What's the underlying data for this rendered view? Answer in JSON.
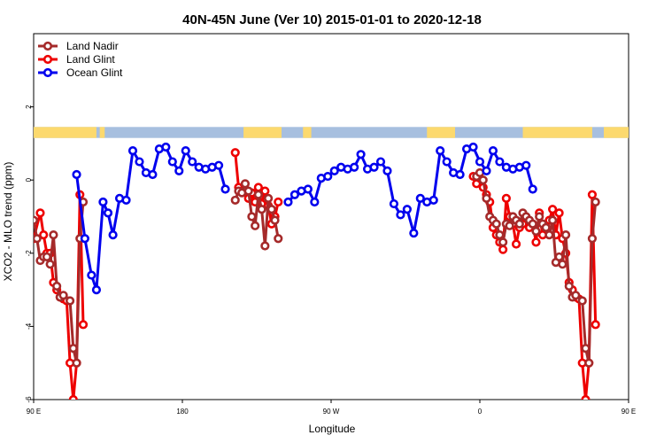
{
  "chart_data": {
    "type": "line",
    "title": "40N-45N June (Ver 10)   2015-01-01 to 2020-12-18",
    "xlabel": "Longitude",
    "ylabel": "XCO2 - MLO trend (ppm)",
    "xlim": [
      90,
      450
    ],
    "ylim": [
      -6,
      4
    ],
    "x_ticks": [
      {
        "value": 90,
        "label": "90 E"
      },
      {
        "value": 180,
        "label": "180"
      },
      {
        "value": 270,
        "label": "90 W"
      },
      {
        "value": 360,
        "label": "0"
      },
      {
        "value": 450,
        "label": "90 E"
      },
      {
        "value": 540,
        "label": "180"
      }
    ],
    "y_ticks": [
      {
        "value": -6,
        "label": "-6"
      },
      {
        "value": -4,
        "label": "-4"
      },
      {
        "value": -2,
        "label": "-2"
      },
      {
        "value": 0,
        "label": "0"
      },
      {
        "value": 2,
        "label": "2"
      }
    ],
    "grid": false,
    "legend_position": "top-left",
    "land_mask_strip": {
      "y_range": [
        1.15,
        1.45
      ],
      "land_color": "#fcd96e",
      "ocean_color": "#a7bfdf",
      "land_ranges": [
        [
          90,
          128
        ],
        [
          130,
          133
        ],
        [
          217,
          240
        ],
        [
          253,
          258
        ],
        [
          328,
          345
        ],
        [
          386,
          428
        ],
        [
          435,
          450
        ]
      ]
    },
    "series": [
      {
        "name": "Land Nadir",
        "color": "#a52a2a",
        "points": [
          [
            90,
            -1.1
          ],
          [
            92,
            -1.6
          ],
          [
            94,
            -2.2
          ],
          [
            96,
            -2.1
          ],
          [
            98,
            -2.1
          ],
          [
            100,
            -2.3
          ],
          [
            102,
            -1.5
          ],
          [
            104,
            -2.9
          ],
          [
            106,
            -3.2
          ],
          [
            108,
            -3.15
          ],
          [
            112,
            -3.3
          ],
          [
            114,
            -4.6
          ],
          [
            116,
            -5.0
          ],
          [
            118,
            -1.6
          ],
          [
            120,
            -0.6
          ],
          [
            212,
            -0.55
          ],
          [
            214,
            -0.3
          ],
          [
            216,
            -0.35
          ],
          [
            218,
            -0.1
          ],
          [
            220,
            -0.3
          ],
          [
            222,
            -1.0
          ],
          [
            224,
            -1.25
          ],
          [
            226,
            -0.4
          ],
          [
            228,
            -0.8
          ],
          [
            230,
            -1.8
          ],
          [
            232,
            -0.5
          ],
          [
            234,
            -0.8
          ],
          [
            236,
            -1.1
          ],
          [
            238,
            -1.6
          ],
          [
            358,
            0.1
          ],
          [
            360,
            0.2
          ],
          [
            362,
            0
          ],
          [
            364,
            -0.5
          ],
          [
            366,
            -1.0
          ],
          [
            368,
            -1.1
          ],
          [
            370,
            -1.2
          ],
          [
            372,
            -1.5
          ],
          [
            374,
            -1.7
          ],
          [
            376,
            -1.2
          ],
          [
            378,
            -1.25
          ],
          [
            380,
            -1.0
          ],
          [
            382,
            -1.1
          ],
          [
            384,
            -1.2
          ],
          [
            386,
            -0.9
          ],
          [
            388,
            -1.0
          ],
          [
            390,
            -1.1
          ],
          [
            392,
            -1.2
          ],
          [
            394,
            -1.4
          ],
          [
            396,
            -1.0
          ],
          [
            398,
            -1.2
          ],
          [
            400,
            -1.3
          ],
          [
            402,
            -1.5
          ],
          [
            404,
            -1.1
          ],
          [
            406,
            -2.25
          ],
          [
            408,
            -2.1
          ],
          [
            410,
            -2.3
          ],
          [
            412,
            -1.5
          ],
          [
            414,
            -2.9
          ],
          [
            416,
            -3.2
          ],
          [
            418,
            -3.15
          ],
          [
            422,
            -3.3
          ],
          [
            424,
            -4.6
          ],
          [
            426,
            -5.0
          ],
          [
            428,
            -1.6
          ],
          [
            430,
            -0.6
          ]
        ]
      },
      {
        "name": "Land Glint",
        "color": "#ee0000",
        "points": [
          [
            90,
            -1.6
          ],
          [
            94,
            -0.9
          ],
          [
            96,
            -1.5
          ],
          [
            98,
            -2.0
          ],
          [
            100,
            -2.0
          ],
          [
            102,
            -2.8
          ],
          [
            104,
            -3.0
          ],
          [
            106,
            -3.2
          ],
          [
            108,
            -3.25
          ],
          [
            110,
            -3.3
          ],
          [
            112,
            -5.0
          ],
          [
            114,
            -6.0
          ],
          [
            116,
            -5.0
          ],
          [
            118,
            -0.4
          ],
          [
            120,
            -3.95
          ],
          [
            212,
            0.75
          ],
          [
            214,
            -0.2
          ],
          [
            216,
            -0.3
          ],
          [
            218,
            -0.25
          ],
          [
            220,
            -0.5
          ],
          [
            222,
            -0.35
          ],
          [
            224,
            -0.6
          ],
          [
            226,
            -0.2
          ],
          [
            228,
            -0.65
          ],
          [
            230,
            -0.3
          ],
          [
            232,
            -0.7
          ],
          [
            234,
            -1.2
          ],
          [
            236,
            -1.0
          ],
          [
            238,
            -0.6
          ],
          [
            356,
            0.1
          ],
          [
            358,
            -0.1
          ],
          [
            360,
            0.05
          ],
          [
            362,
            -0.2
          ],
          [
            364,
            -0.4
          ],
          [
            366,
            -0.6
          ],
          [
            368,
            -1.3
          ],
          [
            370,
            -1.5
          ],
          [
            372,
            -1.7
          ],
          [
            374,
            -1.9
          ],
          [
            376,
            -0.5
          ],
          [
            378,
            -1.0
          ],
          [
            380,
            -1.2
          ],
          [
            382,
            -1.75
          ],
          [
            384,
            -1.3
          ],
          [
            386,
            -1.2
          ],
          [
            388,
            -1.05
          ],
          [
            390,
            -1.3
          ],
          [
            392,
            -1.2
          ],
          [
            394,
            -1.7
          ],
          [
            396,
            -0.9
          ],
          [
            398,
            -1.5
          ],
          [
            400,
            -1.3
          ],
          [
            402,
            -1.1
          ],
          [
            404,
            -0.8
          ],
          [
            406,
            -1.5
          ],
          [
            408,
            -0.9
          ],
          [
            410,
            -1.6
          ],
          [
            412,
            -2.0
          ],
          [
            414,
            -2.8
          ],
          [
            416,
            -3.0
          ],
          [
            418,
            -3.2
          ],
          [
            420,
            -3.25
          ],
          [
            422,
            -5.0
          ],
          [
            424,
            -6.0
          ],
          [
            426,
            -5.0
          ],
          [
            428,
            -0.4
          ],
          [
            430,
            -3.95
          ]
        ]
      },
      {
        "name": "Ocean Glint",
        "color": "#0000ee",
        "points": [
          [
            116,
            0.15
          ],
          [
            121,
            -1.6
          ],
          [
            125,
            -2.6
          ],
          [
            128,
            -3.0
          ],
          [
            132,
            -0.6
          ],
          [
            135,
            -0.9
          ],
          [
            138,
            -1.5
          ],
          [
            142,
            -0.5
          ],
          [
            146,
            -0.55
          ],
          [
            150,
            0.8
          ],
          [
            154,
            0.5
          ],
          [
            158,
            0.2
          ],
          [
            162,
            0.15
          ],
          [
            166,
            0.85
          ],
          [
            170,
            0.9
          ],
          [
            174,
            0.5
          ],
          [
            178,
            0.25
          ],
          [
            182,
            0.8
          ],
          [
            186,
            0.5
          ],
          [
            190,
            0.35
          ],
          [
            194,
            0.3
          ],
          [
            198,
            0.35
          ],
          [
            202,
            0.4
          ],
          [
            206,
            -0.25
          ],
          [
            244,
            -0.6
          ],
          [
            248,
            -0.4
          ],
          [
            252,
            -0.3
          ],
          [
            256,
            -0.25
          ],
          [
            260,
            -0.6
          ],
          [
            264,
            0.05
          ],
          [
            268,
            0.1
          ],
          [
            272,
            0.25
          ],
          [
            276,
            0.35
          ],
          [
            280,
            0.3
          ],
          [
            284,
            0.35
          ],
          [
            288,
            0.7
          ],
          [
            292,
            0.3
          ],
          [
            296,
            0.35
          ],
          [
            300,
            0.5
          ],
          [
            304,
            0.25
          ],
          [
            308,
            -0.65
          ],
          [
            312,
            -0.95
          ],
          [
            316,
            -0.8
          ],
          [
            320,
            -1.45
          ],
          [
            324,
            -0.5
          ],
          [
            328,
            -0.6
          ],
          [
            332,
            -0.55
          ],
          [
            336,
            0.8
          ],
          [
            340,
            0.5
          ],
          [
            344,
            0.2
          ],
          [
            348,
            0.15
          ],
          [
            352,
            0.85
          ],
          [
            356,
            0.9
          ],
          [
            360,
            0.5
          ],
          [
            364,
            0.25
          ],
          [
            368,
            0.8
          ],
          [
            372,
            0.5
          ],
          [
            376,
            0.35
          ],
          [
            380,
            0.3
          ],
          [
            384,
            0.35
          ],
          [
            388,
            0.4
          ],
          [
            392,
            -0.25
          ]
        ]
      }
    ]
  }
}
